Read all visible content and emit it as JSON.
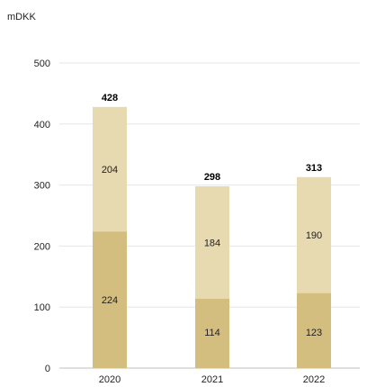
{
  "chart_data": {
    "type": "bar",
    "stacked": true,
    "unit_label": "mDKK",
    "categories": [
      "2020",
      "2021",
      "2022"
    ],
    "series": [
      {
        "values": [
          224,
          114,
          123
        ],
        "color": "#d3be7f"
      },
      {
        "values": [
          204,
          184,
          190
        ],
        "color": "#e7d9b0"
      }
    ],
    "totals": [
      428,
      298,
      313
    ],
    "ylim": [
      0,
      500
    ],
    "yticks": [
      0,
      100,
      200,
      300,
      400,
      500
    ],
    "grid": true,
    "legend": "none"
  }
}
